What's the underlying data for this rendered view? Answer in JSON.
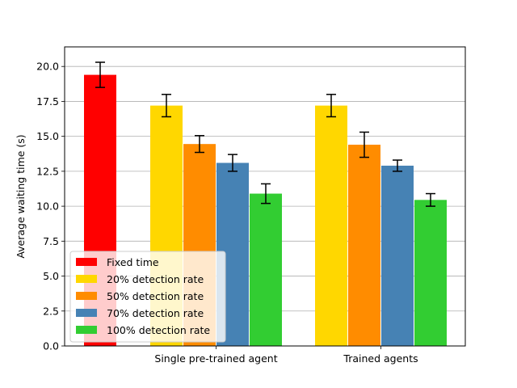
{
  "chart_data": {
    "type": "bar",
    "ylabel": "Average waiting time (s)",
    "xlabel": "",
    "ylim": [
      0,
      21.4
    ],
    "yticks": [
      0.0,
      2.5,
      5.0,
      7.5,
      10.0,
      12.5,
      15.0,
      17.5,
      20.0
    ],
    "ytick_labels": [
      "0.0",
      "2.5",
      "5.0",
      "7.5",
      "10.0",
      "12.5",
      "15.0",
      "17.5",
      "20.0"
    ],
    "grid": "horizontal",
    "legend_position": "lower-left",
    "groups": [
      {
        "label": "",
        "series": [
          "Fixed time"
        ]
      },
      {
        "label": "Single pre-trained agent",
        "series": [
          "20% detection rate",
          "50% detection rate",
          "70% detection rate",
          "100% detection rate"
        ]
      },
      {
        "label": "Trained agents",
        "series": [
          "20% detection rate",
          "50% detection rate",
          "70% detection rate",
          "100% detection rate"
        ]
      }
    ],
    "series": [
      {
        "name": "Fixed time",
        "color": "#ff0000",
        "values": [
          19.4,
          null,
          null
        ],
        "errors": [
          0.9,
          null,
          null
        ]
      },
      {
        "name": "20% detection rate",
        "color": "#ffd700",
        "values": [
          null,
          17.2,
          17.2
        ],
        "errors": [
          null,
          0.8,
          0.8
        ]
      },
      {
        "name": "50% detection rate",
        "color": "#ff8c00",
        "values": [
          null,
          14.45,
          14.4
        ],
        "errors": [
          null,
          0.6,
          0.9
        ]
      },
      {
        "name": "70% detection rate",
        "color": "#4682b4",
        "values": [
          null,
          13.1,
          12.9
        ],
        "errors": [
          null,
          0.6,
          0.4
        ]
      },
      {
        "name": "100% detection rate",
        "color": "#32cd32",
        "values": [
          null,
          10.9,
          10.45
        ],
        "errors": [
          null,
          0.7,
          0.45
        ]
      }
    ]
  }
}
